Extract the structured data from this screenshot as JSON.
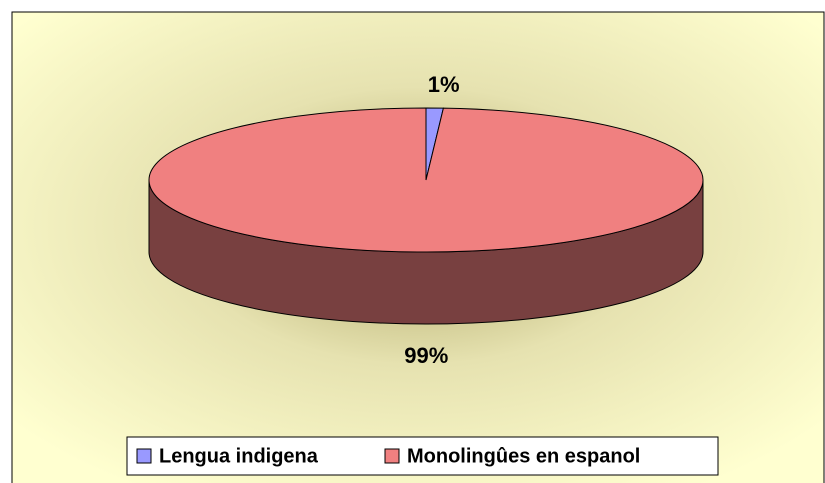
{
  "chart_data": {
    "type": "pie",
    "three_d": true,
    "categories": [
      "Lengua indigena",
      "Monolingûes en espanol"
    ],
    "values": [
      1,
      99
    ],
    "value_labels": [
      "1%",
      "99%"
    ],
    "colors": [
      "#9999ff",
      "#f08080"
    ],
    "legend": "bottom"
  }
}
